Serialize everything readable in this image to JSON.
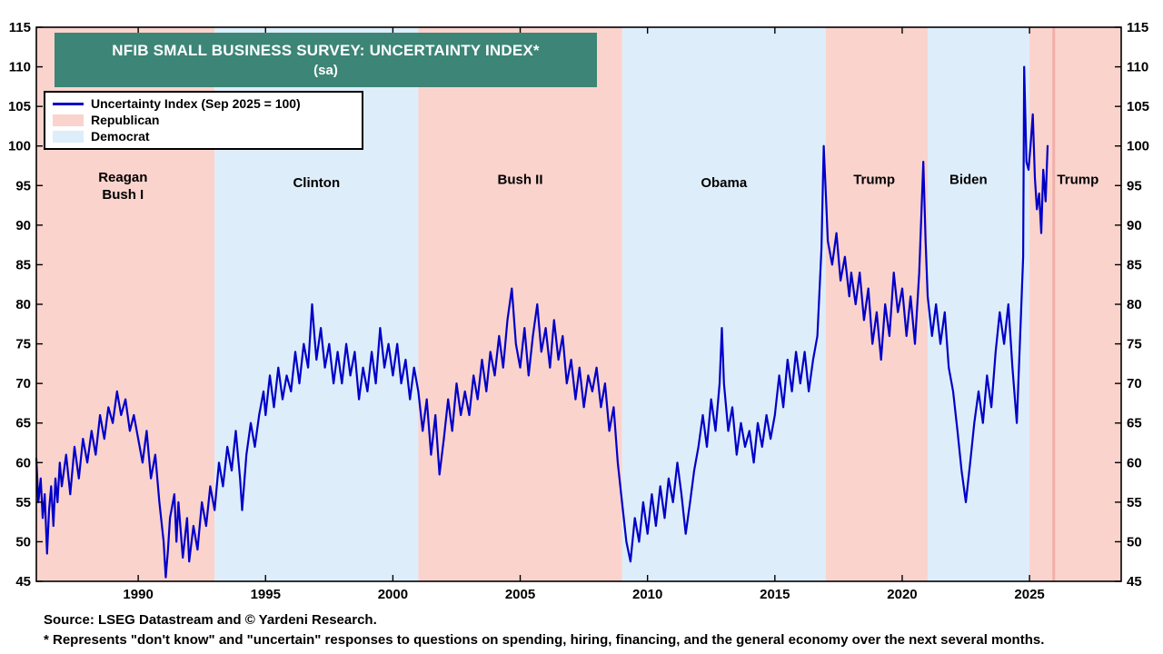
{
  "title": {
    "line1": "NFIB SMALL BUSINESS SURVEY: UNCERTAINTY INDEX*",
    "line2": "(sa)"
  },
  "legend": {
    "items": [
      {
        "label": "Uncertainty Index (Sep 2025 = 100)",
        "type": "line",
        "color": "#0000C8"
      },
      {
        "label": "Republican",
        "type": "swatch",
        "color": "#FAD3CD"
      },
      {
        "label": "Democrat",
        "type": "swatch",
        "color": "#DEEDFA"
      }
    ]
  },
  "footer": {
    "source": "Source: LSEG Datastream and © Yardeni Research.",
    "footnote": "* Represents \"don't know\" and \"uncertain\" responses to questions on spending, hiring, financing, and the general economy over the next several months."
  },
  "chart_data": {
    "type": "line",
    "title": "NFIB Small Business Survey: Uncertainty Index (sa)",
    "x_range": [
      1986.0,
      2028.6
    ],
    "ylim": [
      45,
      115
    ],
    "y_tick_step": 5,
    "x_ticks": [
      1990,
      1995,
      2000,
      2005,
      2010,
      2015,
      2020,
      2025
    ],
    "grid": false,
    "legend_position": "top-left",
    "party_colors": {
      "Republican": "#FAD3CD",
      "Democrat": "#DEEDFA"
    },
    "bands": [
      {
        "label": "Reagan / Bush I",
        "party": "Republican",
        "start": 1986.0,
        "end": 1993.0
      },
      {
        "label": "Clinton",
        "party": "Democrat",
        "start": 1993.0,
        "end": 2001.0
      },
      {
        "label": "Bush II",
        "party": "Republican",
        "start": 2001.0,
        "end": 2009.0
      },
      {
        "label": "Obama",
        "party": "Democrat",
        "start": 2009.0,
        "end": 2017.0
      },
      {
        "label": "Trump",
        "party": "Republican",
        "start": 2017.0,
        "end": 2021.0
      },
      {
        "label": "Biden",
        "party": "Democrat",
        "start": 2021.0,
        "end": 2025.0
      },
      {
        "label": "Trump",
        "party": "Republican",
        "start": 2025.0,
        "end": 2028.6
      }
    ],
    "era_labels": [
      {
        "lines": [
          "Reagan",
          "Bush I"
        ],
        "x": 1989.4,
        "y": 95.5
      },
      {
        "lines": [
          "Clinton"
        ],
        "x": 1997.0,
        "y": 94.8
      },
      {
        "lines": [
          "Bush II"
        ],
        "x": 2005.0,
        "y": 95.2
      },
      {
        "lines": [
          "Obama"
        ],
        "x": 2013.0,
        "y": 94.8
      },
      {
        "lines": [
          "Trump"
        ],
        "x": 2018.9,
        "y": 95.2
      },
      {
        "lines": [
          "Biden"
        ],
        "x": 2022.6,
        "y": 95.2
      },
      {
        "lines": [
          "Trump"
        ],
        "x": 2026.9,
        "y": 95.2
      }
    ],
    "marker_line": {
      "x": 2025.95,
      "color": "#F0B0A8",
      "width": 3
    },
    "series": [
      {
        "name": "Uncertainty Index (Sep 2025 = 100)",
        "color": "#0000C8",
        "points": [
          [
            1986.0,
            60.5
          ],
          [
            1986.08,
            55
          ],
          [
            1986.17,
            58
          ],
          [
            1986.25,
            53
          ],
          [
            1986.33,
            56
          ],
          [
            1986.42,
            48.5
          ],
          [
            1986.5,
            54
          ],
          [
            1986.58,
            57
          ],
          [
            1986.67,
            52
          ],
          [
            1986.75,
            58
          ],
          [
            1986.83,
            55
          ],
          [
            1986.92,
            60
          ],
          [
            1987.0,
            57
          ],
          [
            1987.17,
            61
          ],
          [
            1987.33,
            56
          ],
          [
            1987.5,
            62
          ],
          [
            1987.67,
            58
          ],
          [
            1987.83,
            63
          ],
          [
            1988.0,
            60
          ],
          [
            1988.17,
            64
          ],
          [
            1988.33,
            61
          ],
          [
            1988.5,
            66
          ],
          [
            1988.67,
            63
          ],
          [
            1988.83,
            67
          ],
          [
            1989.0,
            65
          ],
          [
            1989.17,
            69
          ],
          [
            1989.33,
            66
          ],
          [
            1989.5,
            68
          ],
          [
            1989.67,
            64
          ],
          [
            1989.83,
            66
          ],
          [
            1990.0,
            63
          ],
          [
            1990.17,
            60
          ],
          [
            1990.33,
            64
          ],
          [
            1990.5,
            58
          ],
          [
            1990.67,
            61
          ],
          [
            1990.83,
            55
          ],
          [
            1991.0,
            50
          ],
          [
            1991.08,
            45.5
          ],
          [
            1991.17,
            49
          ],
          [
            1991.25,
            53
          ],
          [
            1991.42,
            56
          ],
          [
            1991.5,
            50
          ],
          [
            1991.58,
            55
          ],
          [
            1991.75,
            48
          ],
          [
            1991.92,
            53
          ],
          [
            1992.0,
            47.5
          ],
          [
            1992.17,
            52
          ],
          [
            1992.33,
            49
          ],
          [
            1992.5,
            55
          ],
          [
            1992.67,
            52
          ],
          [
            1992.83,
            57
          ],
          [
            1993.0,
            54
          ],
          [
            1993.17,
            60
          ],
          [
            1993.33,
            57
          ],
          [
            1993.5,
            62
          ],
          [
            1993.67,
            59
          ],
          [
            1993.83,
            64
          ],
          [
            1994.0,
            58
          ],
          [
            1994.08,
            54
          ],
          [
            1994.25,
            61
          ],
          [
            1994.42,
            65
          ],
          [
            1994.58,
            62
          ],
          [
            1994.75,
            66
          ],
          [
            1994.92,
            69
          ],
          [
            1995.0,
            66
          ],
          [
            1995.17,
            71
          ],
          [
            1995.33,
            67
          ],
          [
            1995.5,
            72
          ],
          [
            1995.67,
            68
          ],
          [
            1995.83,
            71
          ],
          [
            1996.0,
            69
          ],
          [
            1996.17,
            74
          ],
          [
            1996.33,
            70
          ],
          [
            1996.5,
            75
          ],
          [
            1996.67,
            72
          ],
          [
            1996.83,
            80
          ],
          [
            1996.92,
            76
          ],
          [
            1997.0,
            73
          ],
          [
            1997.17,
            77
          ],
          [
            1997.33,
            72
          ],
          [
            1997.5,
            75
          ],
          [
            1997.67,
            70
          ],
          [
            1997.83,
            74
          ],
          [
            1998.0,
            70
          ],
          [
            1998.17,
            75
          ],
          [
            1998.33,
            71
          ],
          [
            1998.5,
            74
          ],
          [
            1998.67,
            68
          ],
          [
            1998.83,
            72
          ],
          [
            1999.0,
            69
          ],
          [
            1999.17,
            74
          ],
          [
            1999.33,
            70
          ],
          [
            1999.5,
            77
          ],
          [
            1999.67,
            72
          ],
          [
            1999.83,
            75
          ],
          [
            2000.0,
            71
          ],
          [
            2000.17,
            75
          ],
          [
            2000.33,
            70
          ],
          [
            2000.5,
            73
          ],
          [
            2000.67,
            68
          ],
          [
            2000.83,
            72
          ],
          [
            2001.0,
            69
          ],
          [
            2001.17,
            64
          ],
          [
            2001.33,
            68
          ],
          [
            2001.5,
            61
          ],
          [
            2001.67,
            66
          ],
          [
            2001.83,
            58.5
          ],
          [
            2002.0,
            63
          ],
          [
            2002.17,
            68
          ],
          [
            2002.33,
            64
          ],
          [
            2002.5,
            70
          ],
          [
            2002.67,
            66
          ],
          [
            2002.83,
            69
          ],
          [
            2003.0,
            66
          ],
          [
            2003.17,
            71
          ],
          [
            2003.33,
            68
          ],
          [
            2003.5,
            73
          ],
          [
            2003.67,
            69
          ],
          [
            2003.83,
            74
          ],
          [
            2004.0,
            71
          ],
          [
            2004.17,
            76
          ],
          [
            2004.33,
            72
          ],
          [
            2004.5,
            78
          ],
          [
            2004.67,
            82
          ],
          [
            2004.83,
            75
          ],
          [
            2005.0,
            72
          ],
          [
            2005.17,
            77
          ],
          [
            2005.33,
            71
          ],
          [
            2005.5,
            76
          ],
          [
            2005.67,
            80
          ],
          [
            2005.83,
            74
          ],
          [
            2006.0,
            77
          ],
          [
            2006.17,
            72
          ],
          [
            2006.33,
            78
          ],
          [
            2006.5,
            73
          ],
          [
            2006.67,
            76
          ],
          [
            2006.83,
            70
          ],
          [
            2007.0,
            73
          ],
          [
            2007.17,
            68
          ],
          [
            2007.33,
            72
          ],
          [
            2007.5,
            67
          ],
          [
            2007.67,
            71
          ],
          [
            2007.83,
            69
          ],
          [
            2008.0,
            72
          ],
          [
            2008.17,
            67
          ],
          [
            2008.33,
            70
          ],
          [
            2008.5,
            64
          ],
          [
            2008.67,
            67
          ],
          [
            2008.83,
            60
          ],
          [
            2009.0,
            55
          ],
          [
            2009.17,
            50
          ],
          [
            2009.33,
            47.5
          ],
          [
            2009.5,
            53
          ],
          [
            2009.67,
            50
          ],
          [
            2009.83,
            55
          ],
          [
            2010.0,
            51
          ],
          [
            2010.17,
            56
          ],
          [
            2010.33,
            52
          ],
          [
            2010.5,
            57
          ],
          [
            2010.67,
            53
          ],
          [
            2010.83,
            58
          ],
          [
            2011.0,
            55
          ],
          [
            2011.17,
            60
          ],
          [
            2011.33,
            56
          ],
          [
            2011.5,
            51
          ],
          [
            2011.67,
            55
          ],
          [
            2011.83,
            59
          ],
          [
            2012.0,
            62
          ],
          [
            2012.17,
            66
          ],
          [
            2012.33,
            62
          ],
          [
            2012.5,
            68
          ],
          [
            2012.67,
            64
          ],
          [
            2012.83,
            70
          ],
          [
            2012.92,
            77
          ],
          [
            2013.0,
            70
          ],
          [
            2013.17,
            64
          ],
          [
            2013.33,
            67
          ],
          [
            2013.5,
            61
          ],
          [
            2013.67,
            65
          ],
          [
            2013.83,
            62
          ],
          [
            2014.0,
            64
          ],
          [
            2014.17,
            60
          ],
          [
            2014.33,
            65
          ],
          [
            2014.5,
            62
          ],
          [
            2014.67,
            66
          ],
          [
            2014.83,
            63
          ],
          [
            2015.0,
            66
          ],
          [
            2015.17,
            71
          ],
          [
            2015.33,
            67
          ],
          [
            2015.5,
            73
          ],
          [
            2015.67,
            69
          ],
          [
            2015.83,
            74
          ],
          [
            2016.0,
            70
          ],
          [
            2016.17,
            74
          ],
          [
            2016.33,
            69
          ],
          [
            2016.5,
            73
          ],
          [
            2016.67,
            76
          ],
          [
            2016.83,
            87
          ],
          [
            2016.92,
            100
          ],
          [
            2017.0,
            94
          ],
          [
            2017.08,
            88
          ],
          [
            2017.25,
            85
          ],
          [
            2017.42,
            89
          ],
          [
            2017.58,
            83
          ],
          [
            2017.75,
            86
          ],
          [
            2017.92,
            81
          ],
          [
            2018.0,
            84
          ],
          [
            2018.17,
            80
          ],
          [
            2018.33,
            84
          ],
          [
            2018.5,
            78
          ],
          [
            2018.67,
            82
          ],
          [
            2018.83,
            75
          ],
          [
            2019.0,
            79
          ],
          [
            2019.17,
            73
          ],
          [
            2019.33,
            80
          ],
          [
            2019.5,
            76
          ],
          [
            2019.67,
            84
          ],
          [
            2019.83,
            79
          ],
          [
            2020.0,
            82
          ],
          [
            2020.17,
            76
          ],
          [
            2020.33,
            81
          ],
          [
            2020.5,
            75
          ],
          [
            2020.67,
            84
          ],
          [
            2020.83,
            98
          ],
          [
            2020.92,
            88
          ],
          [
            2021.0,
            81
          ],
          [
            2021.17,
            76
          ],
          [
            2021.33,
            80
          ],
          [
            2021.5,
            75
          ],
          [
            2021.67,
            79
          ],
          [
            2021.83,
            72
          ],
          [
            2022.0,
            69
          ],
          [
            2022.17,
            64
          ],
          [
            2022.33,
            59
          ],
          [
            2022.5,
            55
          ],
          [
            2022.67,
            60
          ],
          [
            2022.83,
            65
          ],
          [
            2023.0,
            69
          ],
          [
            2023.17,
            65
          ],
          [
            2023.33,
            71
          ],
          [
            2023.5,
            67
          ],
          [
            2023.67,
            74
          ],
          [
            2023.83,
            79
          ],
          [
            2024.0,
            75
          ],
          [
            2024.17,
            80
          ],
          [
            2024.33,
            72
          ],
          [
            2024.5,
            65
          ],
          [
            2024.67,
            79
          ],
          [
            2024.75,
            86
          ],
          [
            2024.79,
            110
          ],
          [
            2024.88,
            98
          ],
          [
            2024.96,
            97
          ],
          [
            2025.04,
            100
          ],
          [
            2025.13,
            104
          ],
          [
            2025.21,
            96
          ],
          [
            2025.29,
            92
          ],
          [
            2025.38,
            94
          ],
          [
            2025.46,
            89
          ],
          [
            2025.54,
            97
          ],
          [
            2025.63,
            93
          ],
          [
            2025.71,
            100
          ]
        ]
      }
    ]
  }
}
